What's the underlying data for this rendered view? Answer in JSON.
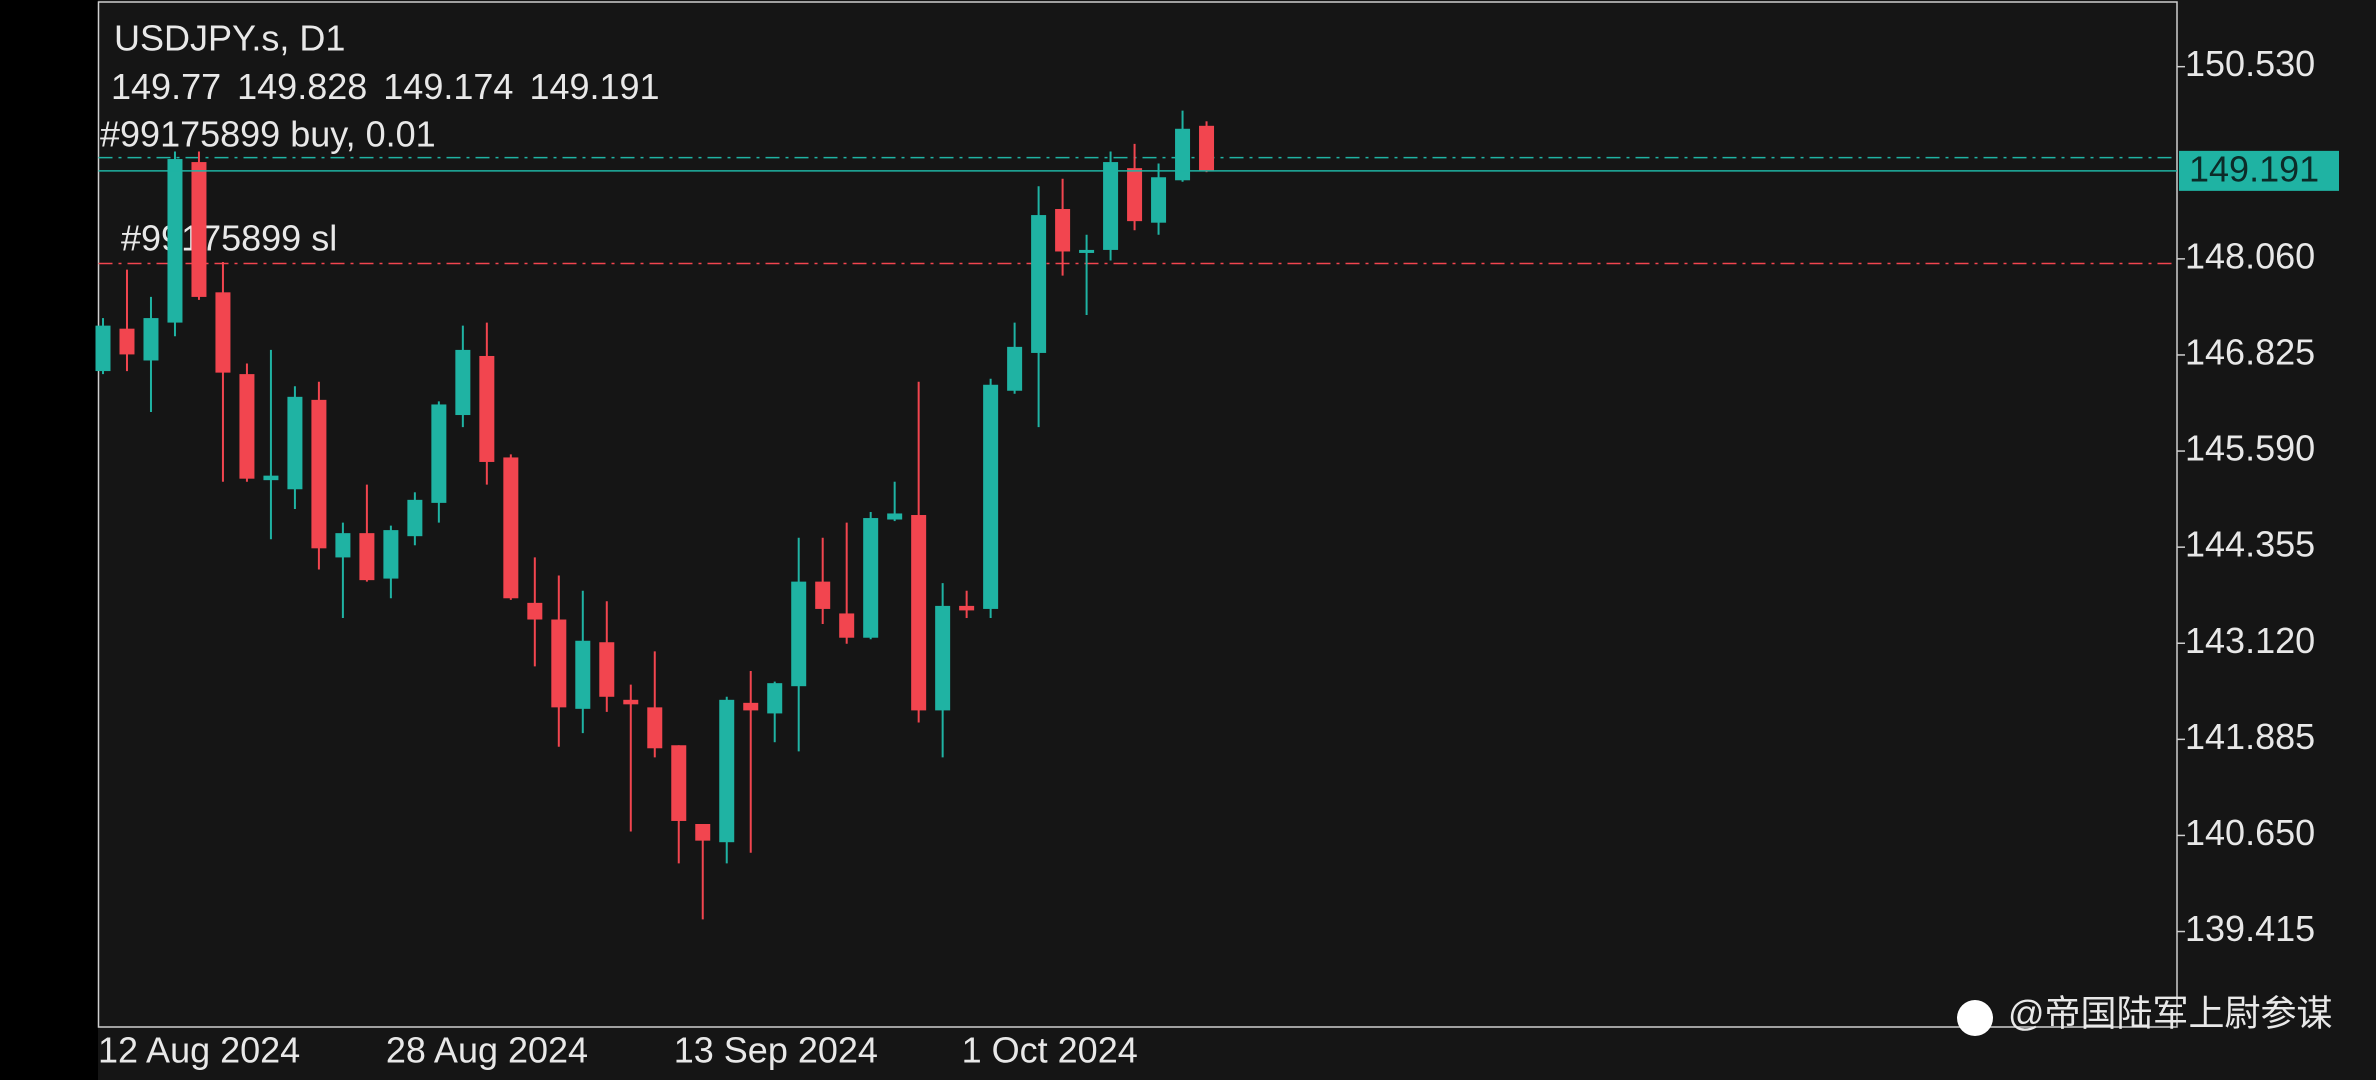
{
  "chart_data": {
    "type": "candlestick",
    "title": "USDJPY.s, D1",
    "categories": [
      "12 Aug 2024",
      null,
      null,
      null,
      null,
      null,
      null,
      null,
      null,
      null,
      null,
      null,
      "28 Aug 2024",
      null,
      null,
      null,
      null,
      null,
      null,
      null,
      null,
      null,
      null,
      null,
      "13 Sep 2024",
      null,
      null,
      null,
      null,
      null,
      null,
      null,
      null,
      null,
      null,
      null,
      "1 Oct 2024",
      null,
      null,
      null,
      null,
      null,
      null,
      null,
      null,
      null,
      null
    ],
    "open": [
      146.618,
      147.163,
      146.754,
      147.241,
      149.304,
      147.63,
      146.579,
      145.216,
      145.099,
      146.248,
      144.223,
      144.535,
      143.951,
      144.496,
      144.924,
      146.053,
      146.812,
      145.508,
      143.639,
      143.425,
      142.277,
      143.133,
      142.393,
      142.296,
      141.809,
      140.797,
      140.563,
      142.354,
      142.218,
      142.568,
      143.912,
      143.503,
      143.191,
      144.71,
      144.768,
      142.257,
      143.6,
      143.561,
      146.365,
      146.851,
      148.701,
      148.136,
      148.175,
      149.226,
      148.525,
      149.07,
      149.77
    ],
    "high": [
      147.299,
      147.922,
      147.571,
      149.44,
      149.44,
      148.019,
      146.715,
      146.89,
      146.423,
      146.481,
      144.671,
      145.158,
      144.632,
      145.06,
      146.228,
      147.202,
      147.241,
      145.547,
      144.223,
      143.99,
      143.795,
      143.659,
      142.588,
      143.016,
      141.809,
      140.797,
      142.432,
      142.763,
      142.627,
      144.476,
      144.476,
      144.671,
      144.807,
      145.196,
      146.481,
      143.892,
      143.795,
      146.52,
      147.241,
      148.993,
      149.09,
      148.37,
      149.44,
      149.538,
      149.285,
      149.966,
      149.828
    ],
    "low": [
      146.579,
      146.618,
      146.092,
      147.065,
      147.533,
      145.196,
      145.196,
      144.457,
      144.846,
      144.067,
      143.444,
      143.912,
      143.698,
      144.379,
      144.671,
      145.897,
      145.158,
      143.678,
      142.822,
      141.79,
      141.965,
      142.238,
      140.7,
      141.653,
      140.291,
      139.571,
      140.291,
      140.427,
      141.848,
      141.731,
      143.367,
      143.114,
      143.172,
      144.69,
      142.101,
      141.653,
      143.444,
      143.444,
      146.326,
      145.897,
      147.844,
      147.338,
      148.039,
      148.428,
      148.37,
      149.051,
      149.174
    ],
    "close": [
      147.202,
      146.832,
      147.299,
      149.343,
      147.571,
      146.598,
      145.235,
      145.274,
      146.287,
      144.34,
      144.535,
      143.931,
      144.574,
      144.963,
      146.189,
      146.89,
      145.45,
      143.698,
      143.425,
      142.296,
      143.152,
      142.432,
      142.335,
      141.77,
      140.836,
      140.583,
      142.393,
      142.257,
      142.607,
      143.912,
      143.561,
      143.191,
      144.729,
      144.788,
      142.257,
      143.6,
      143.542,
      146.442,
      146.929,
      148.623,
      148.155,
      148.175,
      149.304,
      148.545,
      149.109,
      149.732,
      149.191
    ],
    "up_color": "#1fb3a3",
    "down_color": "#f2454f",
    "ylim": [
      138.188,
      151.387
    ],
    "yticks": [
      {
        "value": 150.53,
        "label": "150.530"
      },
      {
        "value": 148.06,
        "label": "148.060"
      },
      {
        "value": 146.825,
        "label": "146.825"
      },
      {
        "value": 145.59,
        "label": "145.590"
      },
      {
        "value": 144.355,
        "label": "144.355"
      },
      {
        "value": 143.12,
        "label": "143.120"
      },
      {
        "value": 141.885,
        "label": "141.885"
      },
      {
        "value": 140.65,
        "label": "140.650"
      },
      {
        "value": 139.415,
        "label": "139.415"
      }
    ],
    "order": {
      "label": "#99175899 buy, 0.01",
      "price": 149.362,
      "color": "#1fb3a3"
    },
    "stop_loss": {
      "label": "#99175899 sl",
      "price": 148.0,
      "color": "#f2454f"
    },
    "watermark": "@帝国陆军上尉参谋"
  }
}
